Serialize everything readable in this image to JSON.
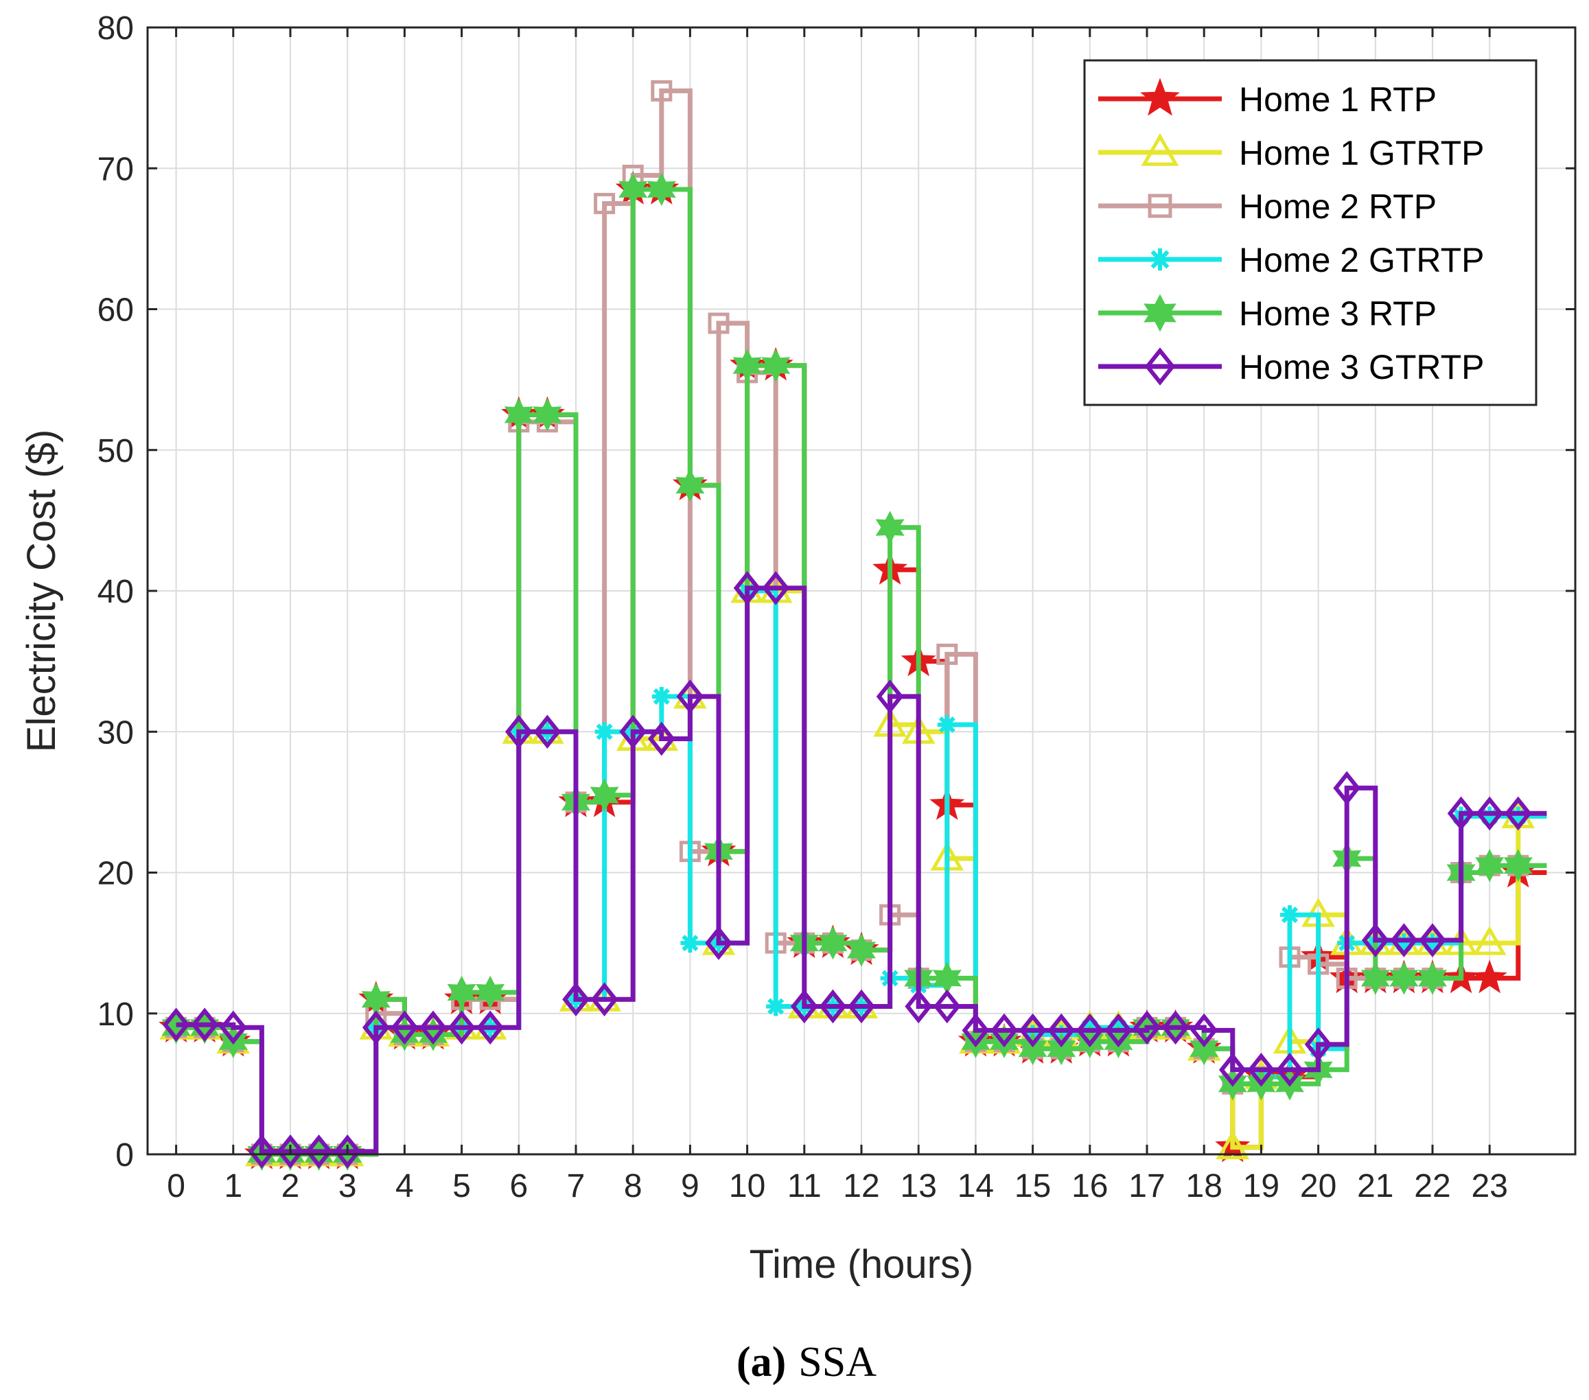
{
  "chart_data": {
    "type": "line",
    "step": true,
    "title": "",
    "xlabel": "Time (hours)",
    "ylabel": "Electricity Cost ($)",
    "xlim": [
      -0.5,
      24.5
    ],
    "ylim": [
      0,
      80
    ],
    "x": [
      0,
      0.5,
      1,
      1.5,
      2,
      2.5,
      3,
      3.5,
      4,
      4.5,
      5,
      5.5,
      6,
      6.5,
      7,
      7.5,
      8,
      8.5,
      9,
      9.5,
      10,
      10.5,
      11,
      11.5,
      12,
      12.5,
      13,
      13.5,
      14,
      14.5,
      15,
      15.5,
      16,
      16.5,
      17,
      17.5,
      18,
      18.5,
      19,
      19.5,
      20,
      20.5,
      21,
      21.5,
      22,
      22.5,
      23,
      23.5
    ],
    "x_ticks": [
      "0",
      "1",
      "2",
      "3",
      "4",
      "5",
      "6",
      "7",
      "8",
      "9",
      "10",
      "11",
      "12",
      "13",
      "14",
      "15",
      "16",
      "17",
      "18",
      "19",
      "20",
      "21",
      "22",
      "23"
    ],
    "y_ticks": [
      "0",
      "10",
      "20",
      "30",
      "40",
      "50",
      "60",
      "70",
      "80"
    ],
    "grid": true,
    "legend_position": "top-right",
    "series": [
      {
        "name": "Home 1 RTP",
        "color": "#e31a1c",
        "marker": "star",
        "values": [
          9,
          9,
          8,
          0,
          0,
          0,
          0,
          11,
          8.5,
          8.5,
          11,
          11,
          52.5,
          52.5,
          25,
          25,
          68.5,
          68.5,
          47.5,
          21.5,
          56,
          56,
          15,
          15,
          14.5,
          41.5,
          35,
          24.8,
          8,
          8,
          7.5,
          7.5,
          8,
          8,
          9,
          9,
          7.5,
          0.5,
          5.5,
          5.5,
          14,
          12.5,
          12.5,
          12.5,
          12.5,
          12.5,
          12.5,
          20
        ]
      },
      {
        "name": "Home 1 GTRTP",
        "color": "#e6e62e",
        "marker": "triangle",
        "values": [
          9,
          9,
          8,
          0,
          0,
          0,
          0,
          9,
          8.5,
          8.5,
          9,
          9,
          30,
          30,
          11,
          11,
          29.5,
          29.5,
          32.5,
          15,
          40,
          40,
          10.5,
          10.5,
          10.5,
          30.5,
          30,
          21,
          8,
          8,
          8.5,
          8.5,
          9,
          9,
          9,
          9,
          7.5,
          0.5,
          5.5,
          8,
          17,
          15,
          15,
          15,
          15,
          15,
          15,
          24
        ]
      },
      {
        "name": "Home 2 RTP",
        "color": "#cc9e9e",
        "marker": "square",
        "values": [
          9,
          9,
          8,
          0,
          0,
          0,
          0,
          10,
          8.5,
          8.5,
          11,
          11,
          52,
          52,
          25,
          67.5,
          69.5,
          75.5,
          21.5,
          59,
          55.5,
          15,
          15,
          15,
          14.5,
          17,
          12.5,
          35.5,
          8,
          8,
          7.5,
          7.5,
          8,
          8,
          9,
          9,
          7.5,
          5,
          5.5,
          14,
          13.5,
          12.5,
          12.5,
          12.5,
          12.5,
          20,
          20.5,
          20.5
        ]
      },
      {
        "name": "Home 2 GTRTP",
        "color": "#17e6e6",
        "marker": "asterisk",
        "values": [
          9,
          9,
          8,
          0,
          0,
          0,
          0,
          9,
          8.5,
          8.5,
          9,
          9,
          30,
          30,
          11,
          30,
          30,
          32.5,
          15,
          15,
          40,
          10.5,
          10.5,
          10.5,
          10.5,
          12.5,
          12,
          30.5,
          8,
          8,
          8.5,
          8.5,
          9,
          9,
          9,
          9,
          7.5,
          5,
          5.5,
          17,
          7.5,
          15,
          15,
          15,
          15,
          24,
          24,
          24
        ]
      },
      {
        "name": "Home 3 RTP",
        "color": "#4dcc4d",
        "marker": "hexagram",
        "values": [
          9,
          9,
          8,
          0,
          0,
          0,
          0,
          11,
          8.5,
          8.5,
          11.5,
          11.5,
          52.5,
          52.5,
          25,
          25.5,
          68.5,
          68.5,
          47.5,
          21.5,
          56,
          56,
          15,
          15,
          14.5,
          44.5,
          12.5,
          12.5,
          8,
          8,
          7.5,
          7.5,
          8,
          8,
          9,
          9,
          7.5,
          5,
          5,
          5,
          6,
          21,
          12.5,
          12.5,
          12.5,
          20,
          20.5,
          20.5
        ]
      },
      {
        "name": "Home 3 GTRTP",
        "color": "#7a14b3",
        "marker": "diamond",
        "values": [
          9.2,
          9.2,
          9,
          0.2,
          0.2,
          0.2,
          0.2,
          9,
          9,
          9,
          9,
          9,
          30,
          30,
          11,
          11,
          30,
          29.5,
          32.5,
          15,
          40.2,
          40.2,
          10.5,
          10.5,
          10.5,
          32.5,
          10.5,
          10.5,
          8.8,
          8.8,
          8.8,
          8.8,
          8.8,
          8.8,
          9,
          9,
          8.8,
          6,
          6,
          6,
          7.8,
          26,
          15.2,
          15.2,
          15.2,
          24.2,
          24.2,
          24.2
        ]
      }
    ]
  },
  "caption": {
    "label": "(a)",
    "text": "SSA"
  }
}
